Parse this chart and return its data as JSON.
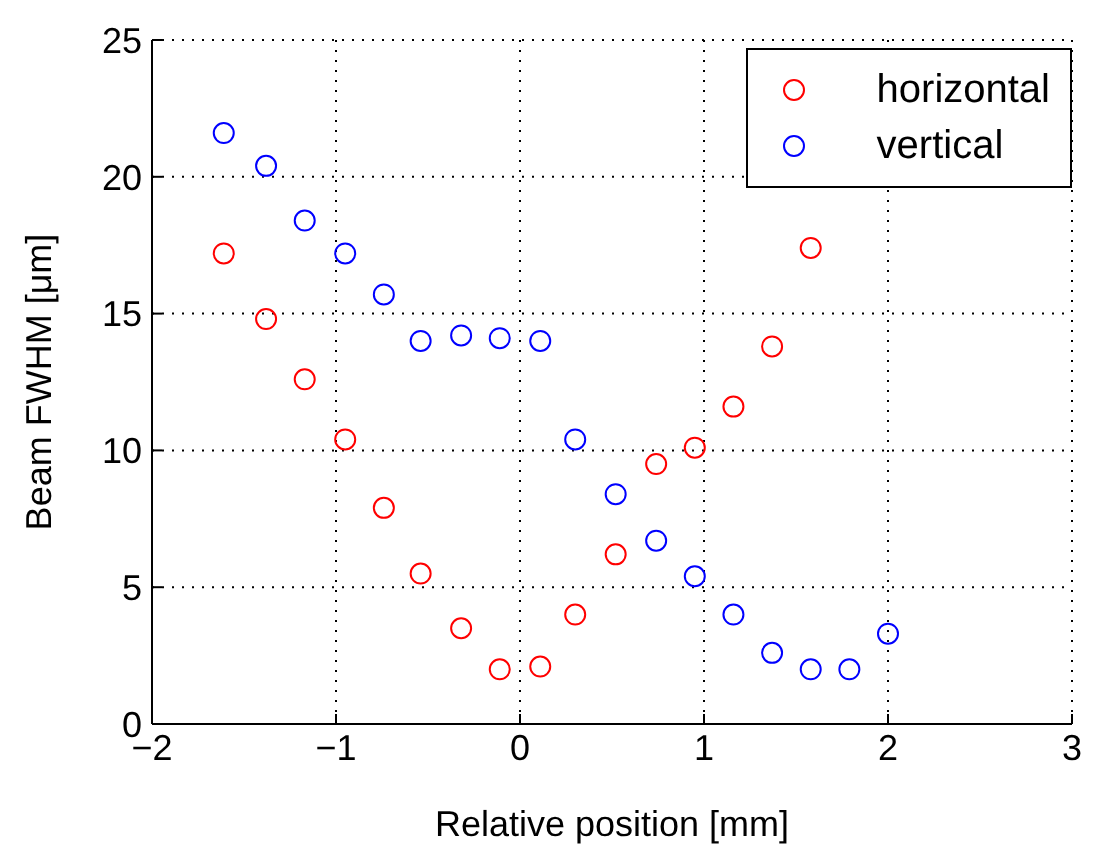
{
  "chart_data": {
    "type": "scatter",
    "xlabel": "Relative position [mm]",
    "ylabel": "Beam FWHM [μm]",
    "xlim": [
      -2,
      3
    ],
    "xticks": [
      {
        "value": -2,
        "label": "−2"
      },
      {
        "value": -1,
        "label": "−1"
      },
      0,
      1,
      2,
      3
    ],
    "ylim": [
      0,
      25
    ],
    "yticks": [
      0,
      5,
      10,
      15,
      20,
      25
    ],
    "grid": true,
    "legend": "top right",
    "marker": "circle",
    "series": [
      {
        "name": "horizontal",
        "color": "#ff0000",
        "x": [
          -1.61,
          -1.38,
          -1.17,
          -0.95,
          -0.74,
          -0.54,
          -0.32,
          -0.11,
          0.11,
          0.3,
          0.52,
          0.74,
          0.95,
          1.16,
          1.37,
          1.58
        ],
        "values": [
          17.2,
          14.8,
          12.6,
          10.4,
          7.9,
          5.5,
          3.5,
          2.0,
          2.1,
          4.0,
          6.2,
          9.5,
          10.1,
          11.6,
          13.8,
          17.4
        ]
      },
      {
        "name": "vertical",
        "color": "#0000ff",
        "x": [
          -1.61,
          -1.38,
          -1.17,
          -0.95,
          -0.74,
          -0.54,
          -0.32,
          -0.11,
          0.11,
          0.3,
          0.52,
          0.74,
          0.95,
          1.16,
          1.37,
          1.58,
          1.79,
          2.0
        ],
        "values": [
          21.6,
          20.4,
          18.4,
          17.2,
          15.7,
          14.0,
          14.2,
          14.1,
          14.0,
          10.4,
          8.4,
          6.7,
          5.4,
          4.0,
          2.6,
          2.0,
          2.0,
          3.3
        ]
      }
    ]
  }
}
